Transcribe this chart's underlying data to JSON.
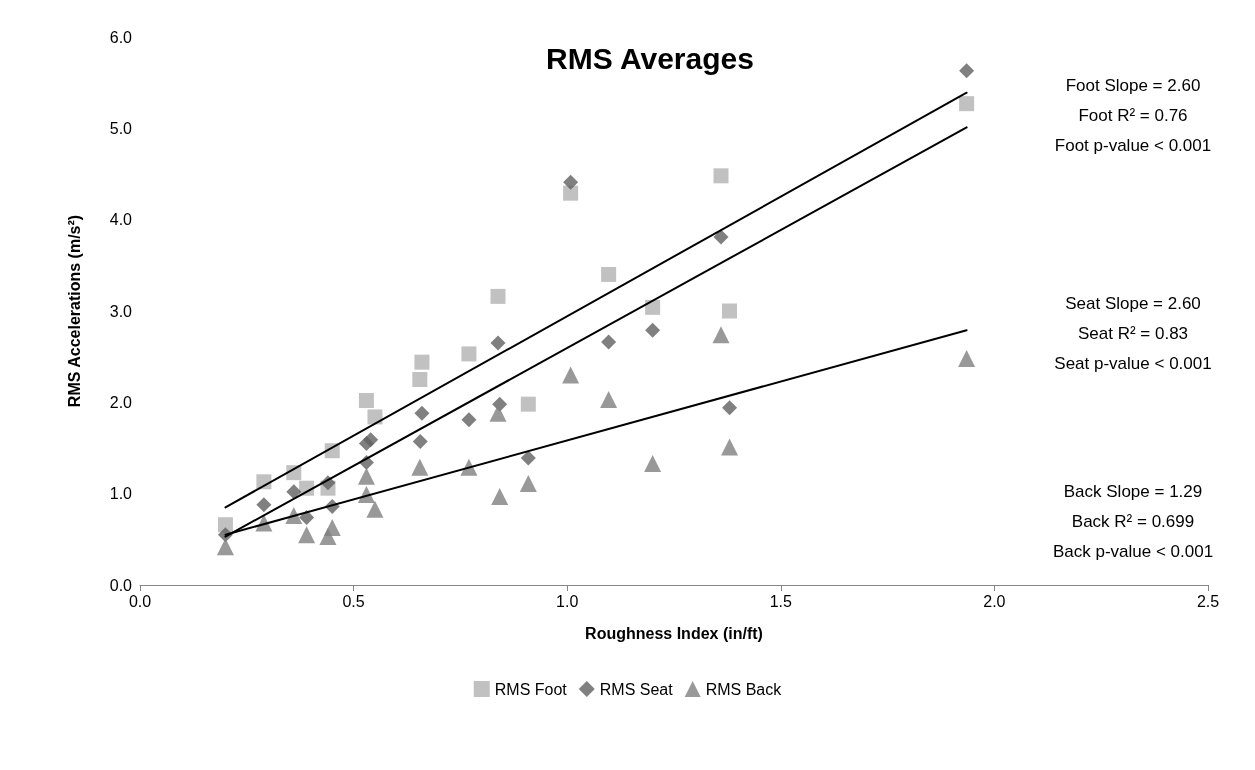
{
  "chart_data": {
    "type": "scatter",
    "title": "RMS Averages",
    "xlabel": "Roughness Index (in/ft)",
    "ylabel": "RMS Accelerations (m/s²)",
    "xlim": [
      0,
      2.5
    ],
    "xticks": [
      {
        "value": 0,
        "label": "0.0"
      },
      0.5,
      {
        "value": 1,
        "label": "1.0"
      },
      1.5,
      {
        "value": 2,
        "label": "2.0"
      },
      2.5
    ],
    "ylim": [
      0,
      6
    ],
    "yticks": [
      {
        "value": 0,
        "label": "0.0"
      },
      {
        "value": 1,
        "label": "1.0"
      },
      {
        "value": 2,
        "label": "2.0"
      },
      {
        "value": 3,
        "label": "3.0"
      },
      {
        "value": 4,
        "label": "4.0"
      },
      {
        "value": 5,
        "label": "5.0"
      },
      {
        "value": 6,
        "label": "6.0"
      }
    ],
    "grid": false,
    "legend": "bottom",
    "series": [
      {
        "name": "RMS Foot",
        "color": "#b2b2b2",
        "marker": "square",
        "x": [
          0.2,
          0.29,
          0.36,
          0.39,
          0.44,
          0.45,
          0.53,
          0.55,
          0.66,
          0.655,
          0.77,
          0.838,
          0.909,
          1.008,
          1.097,
          1.2,
          1.36,
          1.38,
          1.935
        ],
        "values": [
          0.66,
          1.13,
          1.23,
          1.06,
          1.06,
          1.47,
          2.02,
          1.84,
          2.44,
          2.25,
          2.53,
          3.16,
          1.98,
          4.29,
          3.4,
          3.04,
          4.48,
          3.0,
          5.27
        ]
      },
      {
        "name": "RMS Seat",
        "color": "#606060",
        "marker": "diamond",
        "x": [
          0.2,
          0.29,
          0.36,
          0.39,
          0.44,
          0.45,
          0.53,
          0.53,
          0.54,
          0.66,
          0.656,
          0.77,
          0.838,
          0.842,
          0.909,
          1.008,
          1.097,
          1.2,
          1.36,
          1.38,
          1.935
        ],
        "values": [
          0.55,
          0.88,
          1.02,
          0.74,
          1.12,
          0.86,
          1.34,
          1.55,
          1.59,
          1.88,
          1.57,
          1.81,
          2.65,
          1.98,
          1.39,
          4.41,
          2.66,
          2.79,
          3.81,
          1.94,
          5.63
        ]
      },
      {
        "name": "RMS Back",
        "color": "#808080",
        "marker": "triangle",
        "x": [
          0.2,
          0.29,
          0.36,
          0.39,
          0.44,
          0.45,
          0.53,
          0.53,
          0.55,
          0.655,
          0.77,
          0.838,
          0.842,
          0.909,
          1.008,
          1.097,
          1.2,
          1.36,
          1.38,
          1.935
        ],
        "values": [
          0.42,
          0.68,
          0.76,
          0.55,
          0.53,
          0.63,
          1.19,
          0.99,
          0.83,
          1.29,
          1.29,
          1.88,
          0.97,
          1.11,
          2.3,
          2.03,
          1.33,
          2.74,
          1.51,
          2.48
        ]
      },
      {
        "type": "line",
        "color": "#000000",
        "marker": "none",
        "line_style": "solid",
        "x": [
          0.2,
          1.935
        ],
        "values": [
          0.85,
          5.39
        ]
      },
      {
        "type": "line",
        "color": "#000000",
        "marker": "none",
        "line_style": "solid",
        "x": [
          0.2,
          1.935
        ],
        "values": [
          0.53,
          5.01
        ]
      },
      {
        "type": "line",
        "color": "#000000",
        "marker": "none",
        "line_style": "solid",
        "x": [
          0.2,
          1.935
        ],
        "values": [
          0.55,
          2.79
        ]
      }
    ],
    "annotations": [
      "Foot Slope = 2.60\nFoot R² = 0.76\nFoot p-value < 0.001",
      "Seat Slope = 2.60\nSeat R² = 0.83\nSeat p-value < 0.001",
      "Back Slope = 1.29\nBack R² = 0.699\nBack p-value < 0.001"
    ]
  }
}
